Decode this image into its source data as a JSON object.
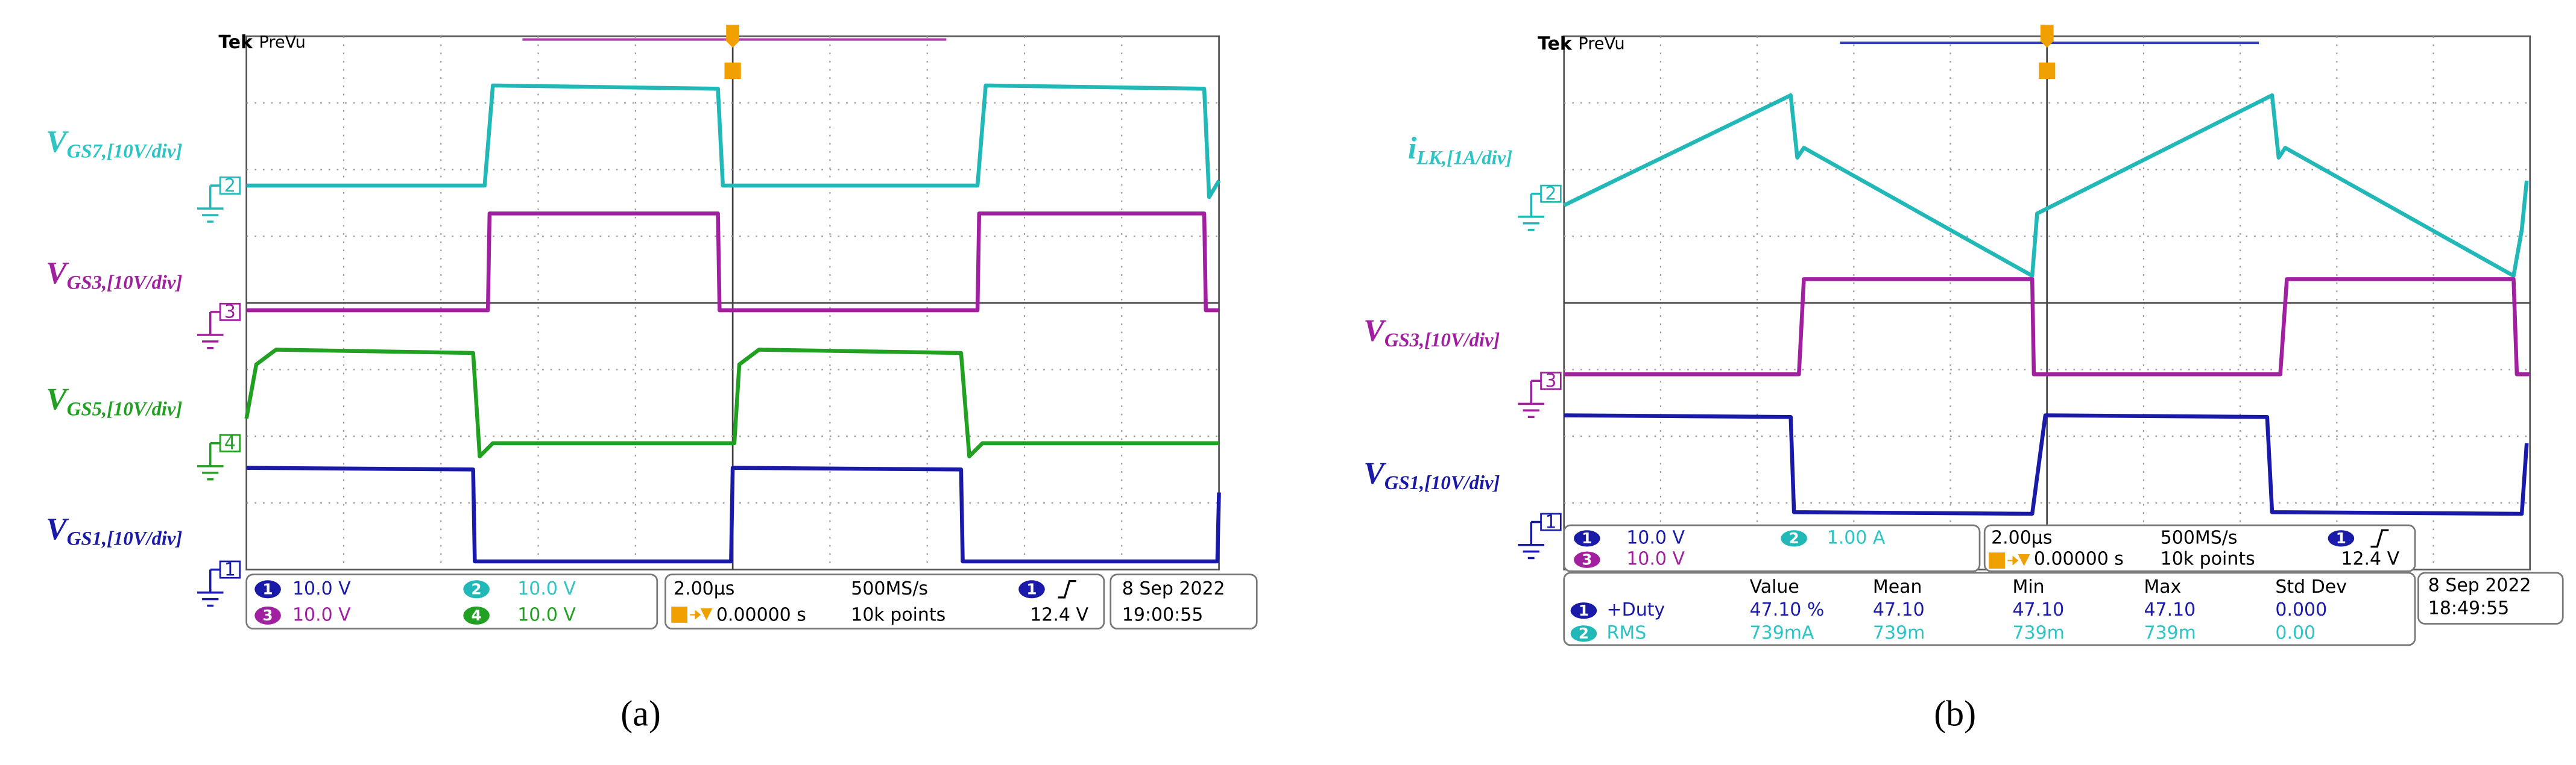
{
  "panels": [
    {
      "brand": "Tek",
      "mode": "PreVu",
      "caption": "(a)",
      "traces": [
        {
          "main": "V",
          "sub": "GS7,[10V/div]"
        },
        {
          "main": "V",
          "sub": "GS3,[10V/div]"
        },
        {
          "main": "V",
          "sub": "GS5,[10V/div]"
        },
        {
          "main": "V",
          "sub": "GS1,[10V/div]"
        }
      ],
      "channels": [
        {
          "num": "1",
          "scale": "10.0 V"
        },
        {
          "num": "2",
          "scale": "10.0 V"
        },
        {
          "num": "3",
          "scale": "10.0 V"
        },
        {
          "num": "4",
          "scale": "10.0 V"
        }
      ],
      "timebase": "2.00µs",
      "sample_rate": "500MS/s",
      "trigger_channel": "1",
      "trigger_position": "0.00000 s",
      "record_length": "10k points",
      "trigger_level": "12.4 V",
      "date": "8 Sep  2022",
      "time": "19:00:55"
    },
    {
      "brand": "Tek",
      "mode": "PreVu",
      "caption": "(b)",
      "traces": [
        {
          "main": "i",
          "sub": "LK,[1A/div]"
        },
        {
          "main": "V",
          "sub": "GS3,[10V/div]"
        },
        {
          "main": "V",
          "sub": "GS1,[10V/div]"
        }
      ],
      "channels": [
        {
          "num": "1",
          "scale": "10.0 V"
        },
        {
          "num": "2",
          "scale": "1.00 A"
        },
        {
          "num": "3",
          "scale": "10.0 V"
        }
      ],
      "timebase": "2.00µs",
      "sample_rate": "500MS/s",
      "trigger_channel": "1",
      "trigger_position": "0.00000 s",
      "record_length": "10k points",
      "trigger_level": "12.4 V",
      "date": "8 Sep  2022",
      "time": "18:49:55",
      "measurements": {
        "headers": [
          "Value",
          "Mean",
          "Min",
          "Max",
          "Std Dev"
        ],
        "rows": [
          {
            "channel": "1",
            "name": "+Duty",
            "cells": [
              "47.10 %",
              "47.10",
              "47.10",
              "47.10",
              "0.000"
            ]
          },
          {
            "channel": "2",
            "name": "RMS",
            "cells": [
              "739mA",
              "739m",
              "739m",
              "739m",
              "0.00"
            ]
          }
        ]
      }
    }
  ]
}
